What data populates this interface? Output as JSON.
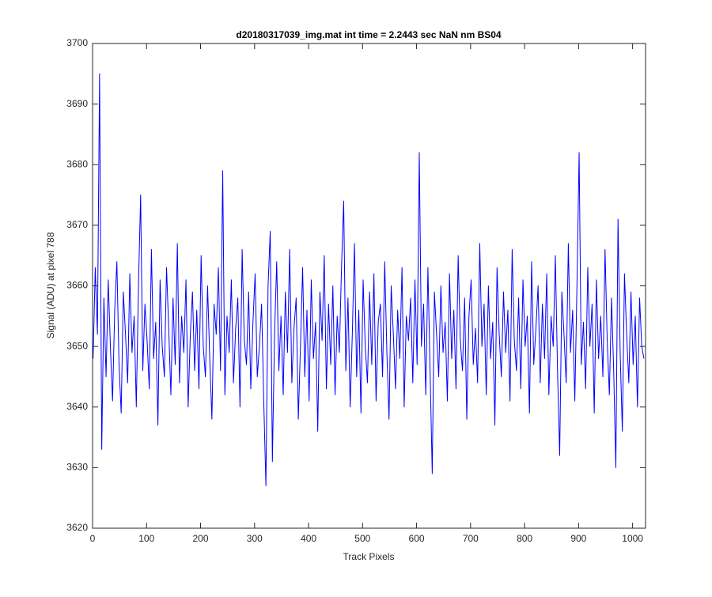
{
  "chart_data": {
    "type": "line",
    "title": "d20180317039_img.mat int time = 2.2443 sec  NaN nm BS04",
    "xlabel": "Track Pixels",
    "ylabel": "Signal (ADU) at pixel 788",
    "xlim": [
      0,
      1024
    ],
    "ylim": [
      3620,
      3700
    ],
    "xticks": [
      0,
      100,
      200,
      300,
      400,
      500,
      600,
      700,
      800,
      900,
      1000
    ],
    "yticks": [
      3620,
      3630,
      3640,
      3650,
      3660,
      3670,
      3680,
      3690,
      3700
    ],
    "grid": false,
    "x": [
      1,
      5,
      9,
      13,
      17,
      21,
      25,
      29,
      33,
      37,
      41,
      45,
      49,
      53,
      57,
      61,
      65,
      69,
      73,
      77,
      81,
      85,
      89,
      93,
      97,
      101,
      105,
      109,
      113,
      117,
      121,
      125,
      129,
      133,
      137,
      141,
      145,
      149,
      153,
      157,
      161,
      165,
      169,
      173,
      177,
      181,
      185,
      189,
      193,
      197,
      201,
      205,
      209,
      213,
      217,
      221,
      225,
      229,
      233,
      237,
      241,
      245,
      249,
      253,
      257,
      261,
      265,
      269,
      273,
      277,
      281,
      285,
      289,
      293,
      297,
      301,
      305,
      309,
      313,
      317,
      321,
      325,
      329,
      333,
      337,
      341,
      345,
      349,
      353,
      357,
      361,
      365,
      369,
      373,
      377,
      381,
      385,
      389,
      393,
      397,
      401,
      405,
      409,
      413,
      417,
      421,
      425,
      429,
      433,
      437,
      441,
      445,
      449,
      453,
      457,
      461,
      465,
      469,
      473,
      477,
      481,
      485,
      489,
      493,
      497,
      501,
      505,
      509,
      513,
      517,
      521,
      525,
      529,
      533,
      537,
      541,
      545,
      549,
      553,
      557,
      561,
      565,
      569,
      573,
      577,
      581,
      585,
      589,
      593,
      597,
      601,
      605,
      609,
      613,
      617,
      621,
      625,
      629,
      633,
      637,
      641,
      645,
      649,
      653,
      657,
      661,
      665,
      669,
      673,
      677,
      681,
      685,
      689,
      693,
      697,
      701,
      705,
      709,
      713,
      717,
      721,
      725,
      729,
      733,
      737,
      741,
      745,
      749,
      753,
      757,
      761,
      765,
      769,
      773,
      777,
      781,
      785,
      789,
      793,
      797,
      801,
      805,
      809,
      813,
      817,
      821,
      825,
      829,
      833,
      837,
      841,
      845,
      849,
      853,
      857,
      861,
      865,
      869,
      873,
      877,
      881,
      885,
      889,
      893,
      897,
      901,
      905,
      909,
      913,
      917,
      921,
      925,
      929,
      933,
      937,
      941,
      945,
      949,
      953,
      957,
      961,
      965,
      969,
      973,
      977,
      981,
      985,
      989,
      993,
      997,
      1001,
      1005,
      1009,
      1013,
      1017,
      1021
    ],
    "series": [
      {
        "color": "#0000ff",
        "values": [
          3648,
          3663,
          3652,
          3695,
          3633,
          3658,
          3645,
          3661,
          3650,
          3641,
          3656,
          3664,
          3647,
          3639,
          3659,
          3652,
          3644,
          3662,
          3649,
          3655,
          3640,
          3660,
          3675,
          3646,
          3657,
          3651,
          3643,
          3666,
          3648,
          3654,
          3637,
          3661,
          3650,
          3645,
          3663,
          3653,
          3642,
          3658,
          3647,
          3667,
          3644,
          3655,
          3649,
          3661,
          3640,
          3652,
          3659,
          3646,
          3656,
          3643,
          3665,
          3650,
          3645,
          3660,
          3648,
          3638,
          3657,
          3652,
          3663,
          3646,
          3679,
          3642,
          3655,
          3649,
          3661,
          3644,
          3653,
          3658,
          3640,
          3666,
          3651,
          3647,
          3659,
          3643,
          3654,
          3662,
          3645,
          3650,
          3657,
          3641,
          3627,
          3660,
          3669,
          3631,
          3652,
          3664,
          3646,
          3655,
          3642,
          3659,
          3649,
          3666,
          3644,
          3653,
          3658,
          3638,
          3650,
          3663,
          3645,
          3656,
          3641,
          3661,
          3648,
          3654,
          3636,
          3659,
          3651,
          3665,
          3643,
          3657,
          3647,
          3660,
          3642,
          3655,
          3649,
          3663,
          3674,
          3646,
          3658,
          3640,
          3652,
          3667,
          3645,
          3656,
          3639,
          3661,
          3650,
          3644,
          3659,
          3647,
          3662,
          3641,
          3654,
          3657,
          3645,
          3664,
          3649,
          3638,
          3660,
          3652,
          3643,
          3656,
          3648,
          3663,
          3640,
          3655,
          3651,
          3658,
          3644,
          3661,
          3647,
          3682,
          3650,
          3657,
          3642,
          3663,
          3646,
          3629,
          3659,
          3652,
          3645,
          3660,
          3649,
          3654,
          3641,
          3662,
          3648,
          3656,
          3643,
          3665,
          3651,
          3646,
          3658,
          3638,
          3655,
          3661,
          3647,
          3653,
          3644,
          3667,
          3650,
          3657,
          3642,
          3660,
          3648,
          3654,
          3637,
          3663,
          3652,
          3645,
          3659,
          3649,
          3656,
          3641,
          3666,
          3651,
          3646,
          3658,
          3643,
          3661,
          3650,
          3655,
          3639,
          3664,
          3647,
          3653,
          3660,
          3644,
          3657,
          3648,
          3662,
          3642,
          3655,
          3650,
          3665,
          3646,
          3632,
          3659,
          3652,
          3644,
          3667,
          3649,
          3656,
          3641,
          3660,
          3682,
          3647,
          3654,
          3643,
          3663,
          3650,
          3657,
          3639,
          3661,
          3648,
          3655,
          3645,
          3666,
          3651,
          3642,
          3658,
          3646,
          3630,
          3671,
          3649,
          3636,
          3662,
          3652,
          3644,
          3659,
          3647,
          3655,
          3640,
          3658,
          3650,
          3648
        ]
      }
    ]
  }
}
